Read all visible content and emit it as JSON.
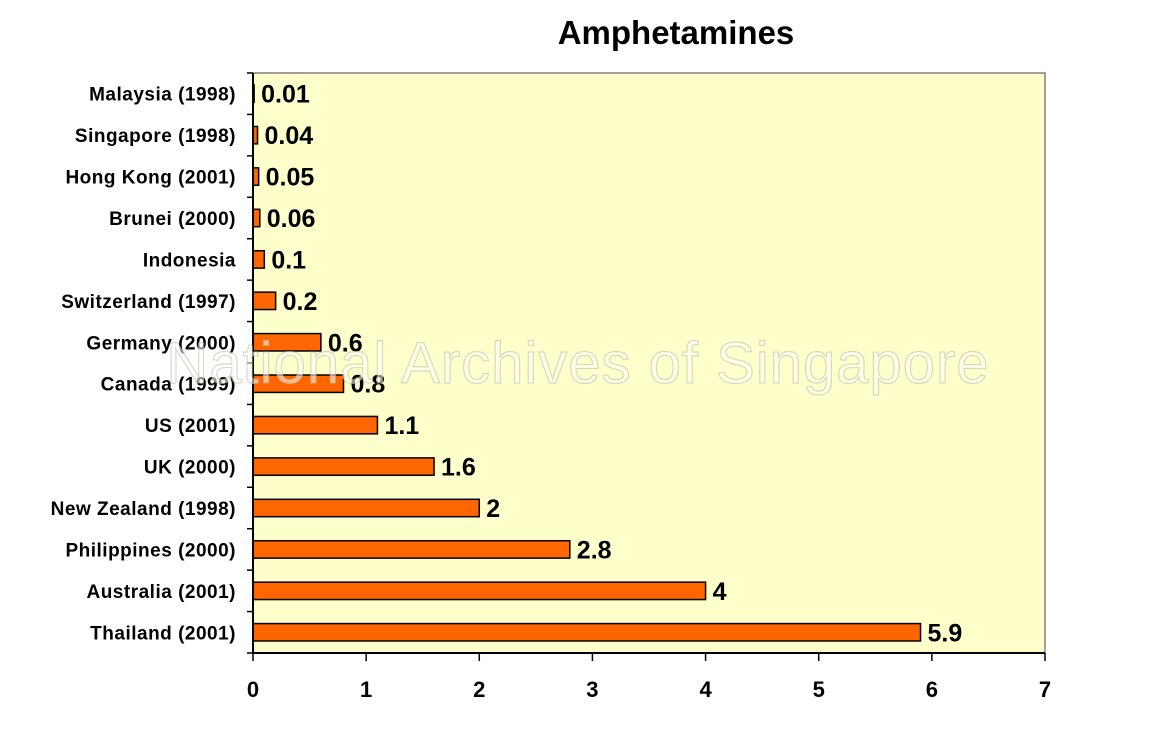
{
  "watermark": "National Archives of Singapore",
  "colors": {
    "plot_bg": "#ffffcc",
    "bar_fill": "#ff6600",
    "bar_stroke": "#000000",
    "axis": "#000000"
  },
  "chart_data": {
    "type": "bar",
    "orientation": "horizontal",
    "title": "Amphetamines",
    "xlabel": "",
    "ylabel": "",
    "categories": [
      "Malaysia (1998)",
      "Singapore (1998)",
      "Hong Kong (2001)",
      "Brunei (2000)",
      "Indonesia",
      "Switzerland (1997)",
      "Germany (2000)",
      "Canada (1999)",
      "US (2001)",
      "UK (2000)",
      "New Zealand (1998)",
      "Philippines (2000)",
      "Australia (2001)",
      "Thailand (2001)"
    ],
    "values": [
      0.01,
      0.04,
      0.05,
      0.06,
      0.1,
      0.2,
      0.6,
      0.8,
      1.1,
      1.6,
      2,
      2.8,
      4,
      5.9
    ],
    "data_labels": [
      "0.01",
      "0.04",
      "0.05",
      "0.06",
      "0.1",
      "0.2",
      "0.6",
      "0.8",
      "1.1",
      "1.6",
      "2",
      "2.8",
      "4",
      "5.9"
    ],
    "xlim": [
      0,
      7
    ],
    "xticks": [
      "0",
      "1",
      "2",
      "3",
      "4",
      "5",
      "6",
      "7"
    ],
    "grid": false,
    "legend": "none"
  }
}
